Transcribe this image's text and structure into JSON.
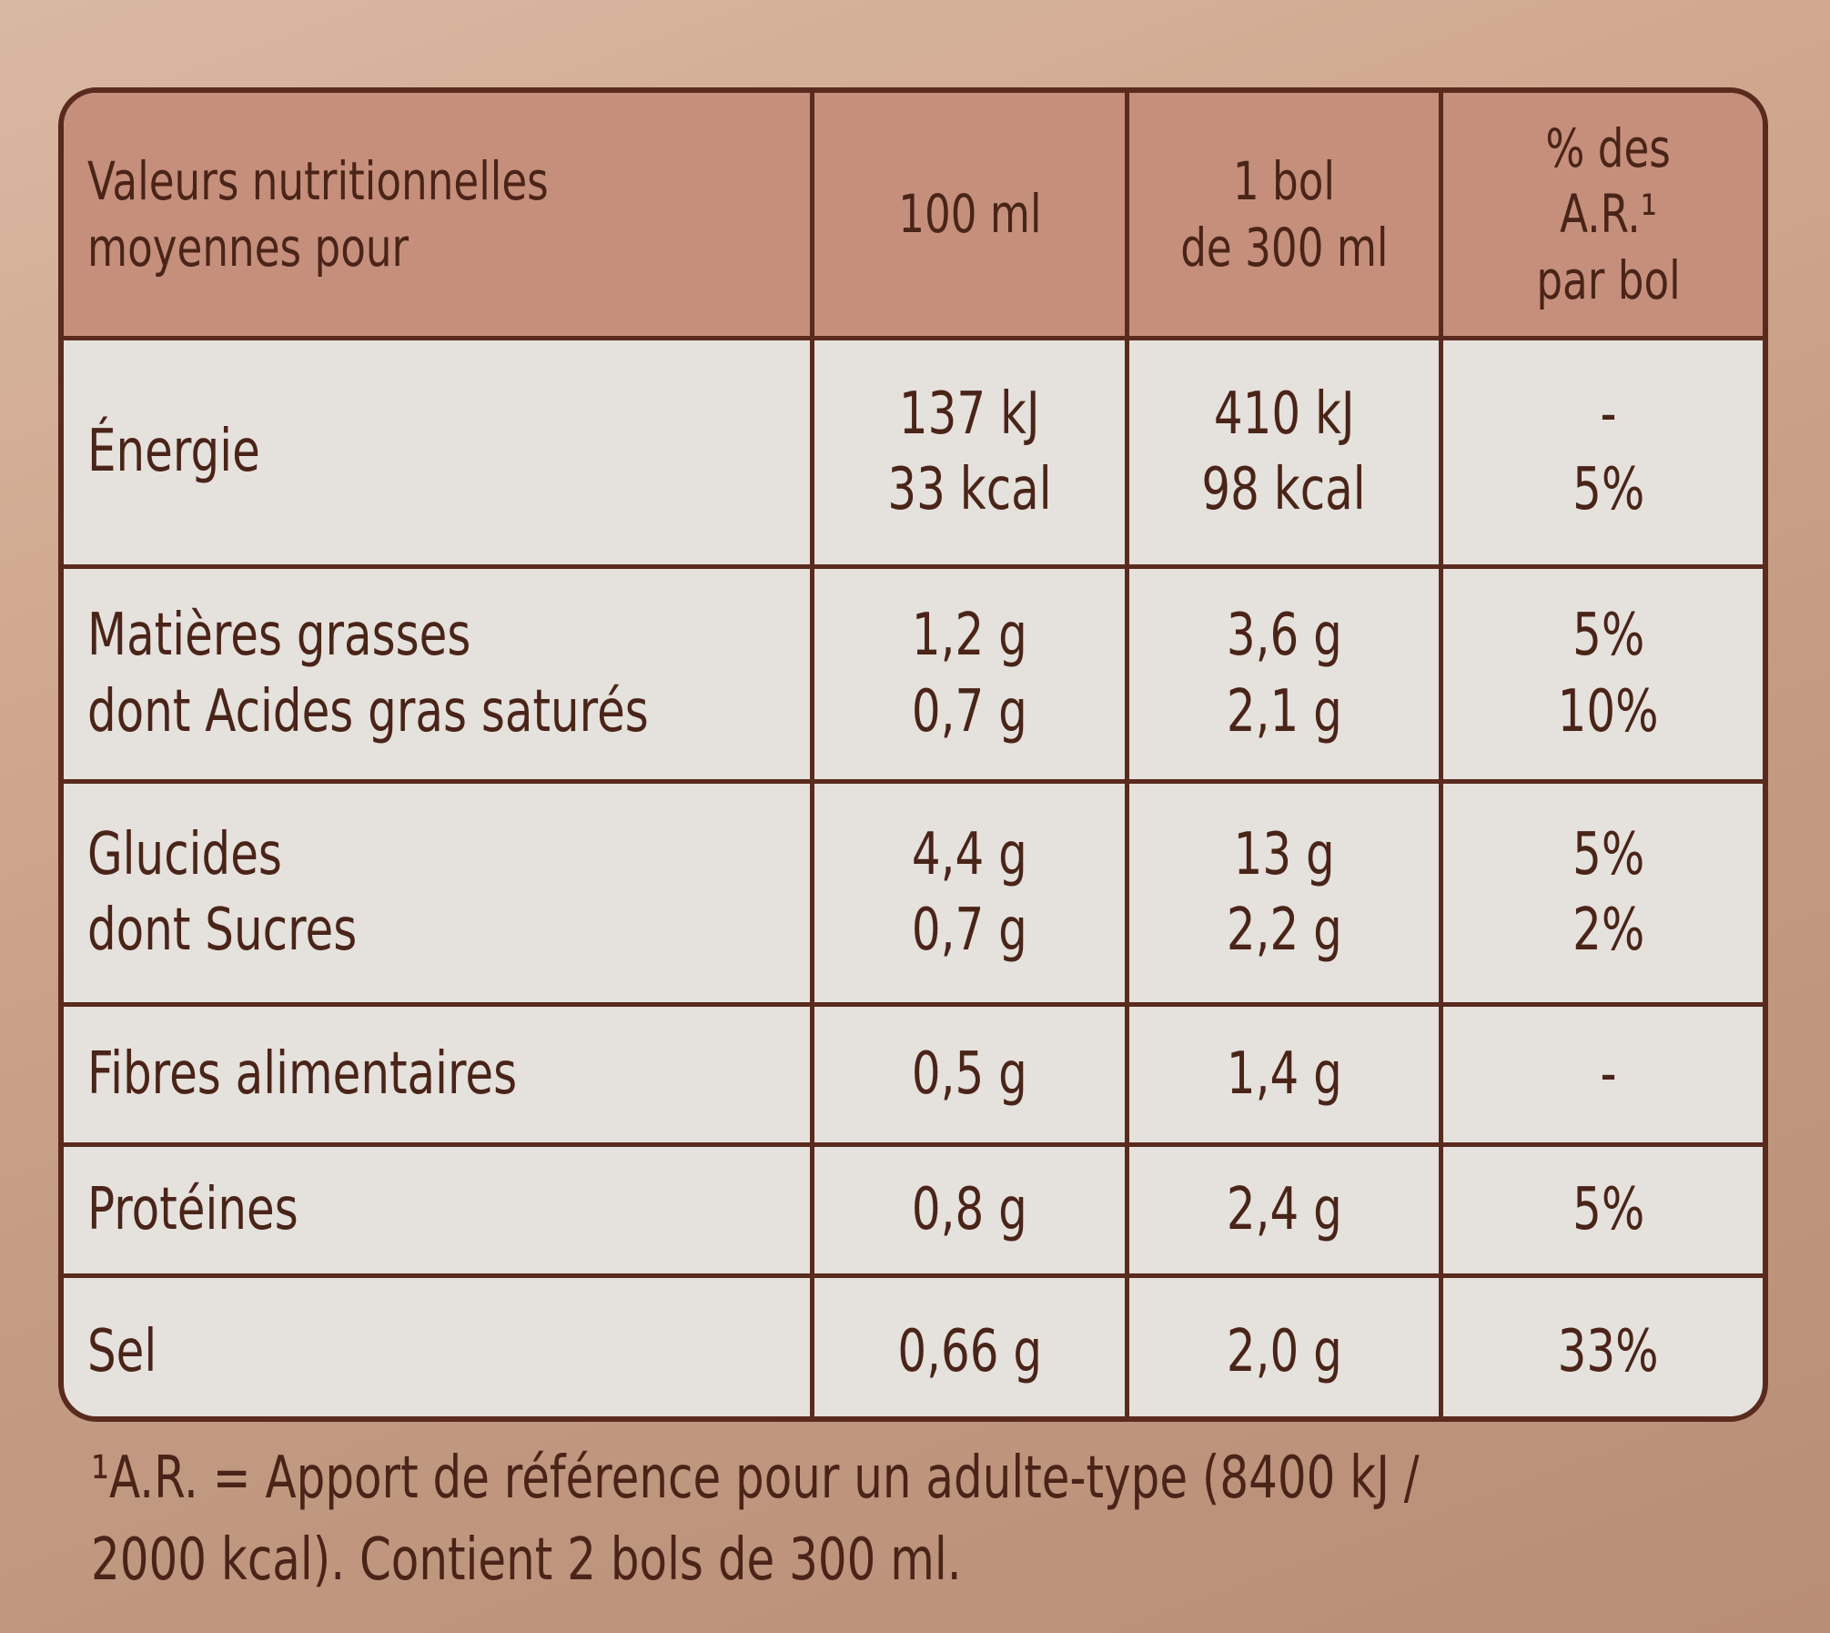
{
  "table": {
    "header": [
      [
        "Valeurs nutritionnelles",
        "moyennes pour"
      ],
      [
        "100 ml"
      ],
      [
        "1 bol",
        "de 300 ml"
      ],
      [
        "% des",
        "A.R.¹",
        "par bol"
      ]
    ],
    "rows": [
      [
        [
          "Énergie"
        ],
        [
          "137 kJ",
          "33 kcal"
        ],
        [
          "410 kJ",
          "98 kcal"
        ],
        [
          "-",
          "5%"
        ]
      ],
      [
        [
          "Matières grasses",
          "dont Acides gras saturés"
        ],
        [
          "1,2 g",
          "0,7 g"
        ],
        [
          "3,6 g",
          "2,1 g"
        ],
        [
          "5%",
          "10%"
        ]
      ],
      [
        [
          "Glucides",
          "dont Sucres"
        ],
        [
          "4,4 g",
          "0,7 g"
        ],
        [
          "13 g",
          "2,2 g"
        ],
        [
          "5%",
          "2%"
        ]
      ],
      [
        [
          "Fibres alimentaires"
        ],
        [
          "0,5 g"
        ],
        [
          "1,4 g"
        ],
        [
          "-"
        ]
      ],
      [
        [
          "Protéines"
        ],
        [
          "0,8 g"
        ],
        [
          "2,4 g"
        ],
        [
          "5%"
        ]
      ],
      [
        [
          "Sel"
        ],
        [
          "0,66 g"
        ],
        [
          "2,0 g"
        ],
        [
          "33%"
        ]
      ]
    ]
  },
  "footnote": [
    "¹A.R. = Apport de référence pour un adulte-type (8400 kJ /",
    "2000 kcal). Contient 2 bols de 300 ml."
  ]
}
